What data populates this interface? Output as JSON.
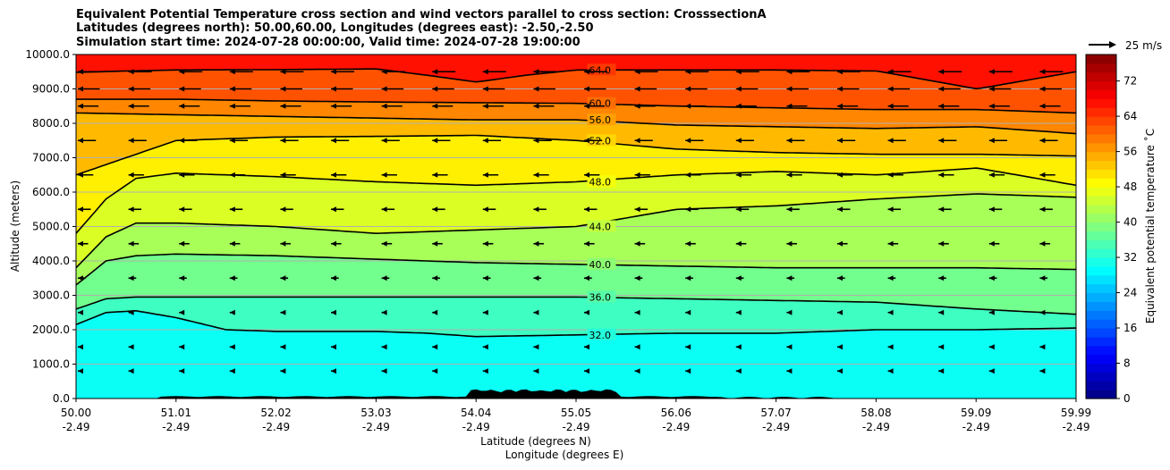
{
  "chart_data": {
    "type": "heatmap",
    "title_lines": [
      "Equivalent Potential Temperature cross section and wind vectors parallel to cross section: CrosssectionA",
      "Latitudes (degrees north): 50.00,60.00, Longitudes (degrees east): -2.50,-2.50",
      "Simulation start time: 2024-07-28 00:00:00, Valid time: 2024-07-28 19:00:00"
    ],
    "ylabel": "Altitude (meters)",
    "xlabel_lines": [
      "Latitude (degrees N)",
      "Longitude (degrees E)"
    ],
    "ylim": [
      0,
      10000
    ],
    "y_ticks": [
      "0.0",
      "1000.0",
      "2000.0",
      "3000.0",
      "4000.0",
      "5000.0",
      "6000.0",
      "7000.0",
      "8000.0",
      "9000.0",
      "10000.0"
    ],
    "x_ticks_lat": [
      "50.00",
      "51.01",
      "52.02",
      "53.03",
      "54.04",
      "55.05",
      "56.06",
      "57.07",
      "58.08",
      "59.09",
      "59.99"
    ],
    "x_ticks_lon": [
      "-2.49",
      "-2.49",
      "-2.49",
      "-2.49",
      "-2.49",
      "-2.49",
      "-2.49",
      "-2.49",
      "-2.49",
      "-2.49",
      "-2.49"
    ],
    "xlim": [
      50.0,
      59.99
    ],
    "grid": "horizontal",
    "colorbar": {
      "label": "Equivalent potential temperature ˚C",
      "min": 0,
      "max": 78,
      "step": 2,
      "tick_labels": [
        "0",
        "8",
        "16",
        "24",
        "32",
        "40",
        "48",
        "56",
        "64",
        "72"
      ],
      "colormap": "jet"
    },
    "vector_key": {
      "label": "25 m/s",
      "speed": 25
    },
    "contour_levels": [
      32.0,
      36.0,
      40.0,
      44.0,
      48.0,
      52.0,
      56.0,
      60.0,
      64.0
    ],
    "contours": [
      {
        "level": 64.0,
        "x": [
          50.0,
          50.5,
          51.0,
          52.0,
          53.0,
          53.5,
          54.0,
          54.5,
          55.0,
          56.0,
          57.0,
          58.0,
          59.0,
          59.99
        ],
        "y": [
          9480,
          9520,
          9550,
          9560,
          9580,
          9400,
          9200,
          9400,
          9550,
          9550,
          9550,
          9520,
          9000,
          9500
        ]
      },
      {
        "level": 60.0,
        "x": [
          50.0,
          51.0,
          52.0,
          53.0,
          54.0,
          55.0,
          56.0,
          57.0,
          58.0,
          59.0,
          59.99
        ],
        "y": [
          8700,
          8700,
          8650,
          8620,
          8600,
          8580,
          8500,
          8450,
          8400,
          8400,
          8300
        ]
      },
      {
        "level": 56.0,
        "x": [
          50.0,
          51.0,
          52.0,
          53.0,
          54.0,
          55.0,
          56.0,
          57.0,
          58.0,
          59.0,
          59.99
        ],
        "y": [
          8300,
          8250,
          8200,
          8150,
          8100,
          8100,
          7950,
          7900,
          7850,
          7900,
          7700
        ]
      },
      {
        "level": 52.0,
        "x": [
          50.0,
          51.0,
          52.0,
          53.0,
          54.0,
          55.0,
          56.0,
          57.0,
          58.0,
          59.0,
          59.99
        ],
        "y": [
          6500,
          7500,
          7600,
          7620,
          7650,
          7500,
          7250,
          7150,
          7100,
          7100,
          7050
        ]
      },
      {
        "level": 48.0,
        "x": [
          50.0,
          50.3,
          50.6,
          51.0,
          52.0,
          53.0,
          54.0,
          55.0,
          56.0,
          57.0,
          58.0,
          59.0,
          59.99
        ],
        "y": [
          4800,
          5800,
          6400,
          6550,
          6450,
          6300,
          6200,
          6300,
          6500,
          6600,
          6500,
          6700,
          6200
        ]
      },
      {
        "level": 44.0,
        "x": [
          50.0,
          50.3,
          50.6,
          51.0,
          52.0,
          53.0,
          54.0,
          55.0,
          56.0,
          57.0,
          58.0,
          59.0,
          59.99
        ],
        "y": [
          3800,
          4700,
          5100,
          5100,
          5000,
          4800,
          4900,
          5000,
          5500,
          5600,
          5800,
          5950,
          5850
        ]
      },
      {
        "level": 40.0,
        "x": [
          50.0,
          50.3,
          50.6,
          51.0,
          52.0,
          53.0,
          54.0,
          55.0,
          56.0,
          57.0,
          58.0,
          59.0,
          59.99
        ],
        "y": [
          3300,
          4000,
          4150,
          4200,
          4150,
          4050,
          3950,
          3900,
          3850,
          3800,
          3800,
          3800,
          3750
        ]
      },
      {
        "level": 36.0,
        "x": [
          50.0,
          50.3,
          50.6,
          51.0,
          52.0,
          53.0,
          54.0,
          55.0,
          56.0,
          57.0,
          58.0,
          59.0,
          59.99
        ],
        "y": [
          2600,
          2900,
          2950,
          2950,
          2950,
          2950,
          2950,
          2950,
          2900,
          2850,
          2800,
          2600,
          2450
        ]
      },
      {
        "level": 32.0,
        "x": [
          50.0,
          50.3,
          50.6,
          51.0,
          51.5,
          52.0,
          53.0,
          53.5,
          54.0,
          55.0,
          56.0,
          57.0,
          58.0,
          59.0,
          59.99
        ],
        "y": [
          2150,
          2500,
          2550,
          2350,
          2000,
          1950,
          1950,
          1900,
          1800,
          1850,
          1900,
          1900,
          2000,
          2000,
          2050
        ]
      }
    ]
  }
}
